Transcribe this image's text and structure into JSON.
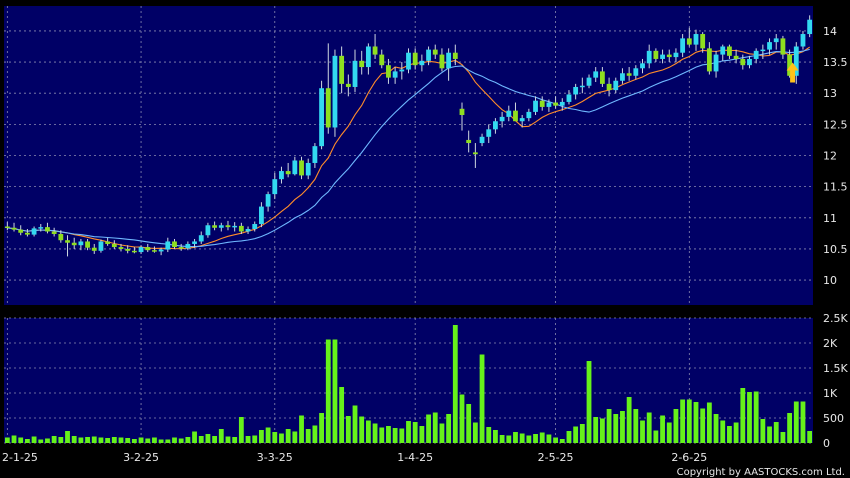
{
  "chart_data": {
    "type": "candlestick",
    "price_panel": {
      "ylim": [
        9.6,
        14.4
      ],
      "y_ticks": [
        10,
        10.5,
        11,
        11.5,
        12,
        12.5,
        13,
        13.5,
        14
      ],
      "grid": true,
      "moving_averages": [
        {
          "color": "#ff8c2a"
        },
        {
          "color": "#6fb8ff"
        }
      ]
    },
    "volume_panel": {
      "ylim": [
        0,
        2500
      ],
      "y_ticks": [
        0,
        500,
        1000,
        1500,
        2000,
        2500
      ],
      "y_tick_labels": [
        "0",
        "500",
        "1K",
        "1.5K",
        "2K",
        "2.5K"
      ],
      "grid": true
    },
    "x_tick_labels": [
      "2-1-25",
      "3-2-25",
      "3-3-25",
      "1-4-25",
      "2-5-25",
      "2-6-25"
    ],
    "x_tick_index": [
      0,
      20,
      40,
      61,
      82,
      102
    ],
    "colors": {
      "background": "#000066",
      "grid": "#8a8ab0",
      "up_candle": "#33d9f0",
      "down_candle": "#8fdf1f",
      "volume_bar": "#66f21a",
      "marker": "#ffc21a"
    },
    "ohlcv": [
      [
        10.86,
        10.93,
        10.8,
        10.84,
        110
      ],
      [
        10.84,
        10.92,
        10.78,
        10.81,
        150
      ],
      [
        10.81,
        10.88,
        10.72,
        10.76,
        110
      ],
      [
        10.76,
        10.82,
        10.7,
        10.73,
        80
      ],
      [
        10.73,
        10.86,
        10.7,
        10.83,
        130
      ],
      [
        10.83,
        10.9,
        10.78,
        10.85,
        70
      ],
      [
        10.85,
        10.92,
        10.75,
        10.78,
        90
      ],
      [
        10.78,
        10.84,
        10.7,
        10.74,
        140
      ],
      [
        10.74,
        10.8,
        10.6,
        10.64,
        120
      ],
      [
        10.64,
        10.72,
        10.38,
        10.6,
        240
      ],
      [
        10.6,
        10.68,
        10.5,
        10.56,
        140
      ],
      [
        10.56,
        10.66,
        10.48,
        10.62,
        110
      ],
      [
        10.62,
        10.66,
        10.48,
        10.52,
        120
      ],
      [
        10.52,
        10.58,
        10.42,
        10.47,
        130
      ],
      [
        10.47,
        10.65,
        10.44,
        10.62,
        110
      ],
      [
        10.62,
        10.68,
        10.55,
        10.58,
        100
      ],
      [
        10.58,
        10.64,
        10.5,
        10.53,
        120
      ],
      [
        10.53,
        10.58,
        10.46,
        10.5,
        110
      ],
      [
        10.5,
        10.56,
        10.43,
        10.47,
        100
      ],
      [
        10.47,
        10.53,
        10.43,
        10.45,
        80
      ],
      [
        10.45,
        10.56,
        10.42,
        10.53,
        110
      ],
      [
        10.53,
        10.58,
        10.45,
        10.48,
        90
      ],
      [
        10.48,
        10.54,
        10.44,
        10.46,
        110
      ],
      [
        10.46,
        10.52,
        10.4,
        10.49,
        70
      ],
      [
        10.49,
        10.68,
        10.45,
        10.62,
        70
      ],
      [
        10.62,
        10.66,
        10.5,
        10.53,
        110
      ],
      [
        10.53,
        10.58,
        10.47,
        10.51,
        90
      ],
      [
        10.51,
        10.62,
        10.48,
        10.58,
        120
      ],
      [
        10.58,
        10.66,
        10.52,
        10.62,
        230
      ],
      [
        10.62,
        10.78,
        10.58,
        10.72,
        140
      ],
      [
        10.72,
        10.92,
        10.68,
        10.88,
        180
      ],
      [
        10.88,
        10.94,
        10.8,
        10.84,
        140
      ],
      [
        10.84,
        10.92,
        10.78,
        10.88,
        280
      ],
      [
        10.88,
        10.95,
        10.8,
        10.85,
        130
      ],
      [
        10.85,
        10.93,
        10.78,
        10.87,
        120
      ],
      [
        10.87,
        10.92,
        10.74,
        10.78,
        520
      ],
      [
        10.78,
        10.86,
        10.74,
        10.82,
        140
      ],
      [
        10.82,
        10.94,
        10.78,
        10.9,
        150
      ],
      [
        10.9,
        11.25,
        10.85,
        11.18,
        260
      ],
      [
        11.18,
        11.42,
        11.1,
        11.38,
        310
      ],
      [
        11.38,
        11.72,
        11.3,
        11.62,
        220
      ],
      [
        11.62,
        11.82,
        11.55,
        11.75,
        190
      ],
      [
        11.75,
        11.88,
        11.65,
        11.7,
        280
      ],
      [
        11.7,
        11.98,
        11.68,
        11.92,
        230
      ],
      [
        11.92,
        11.98,
        11.62,
        11.68,
        550
      ],
      [
        11.68,
        11.95,
        11.62,
        11.88,
        280
      ],
      [
        11.88,
        12.2,
        11.8,
        12.15,
        350
      ],
      [
        12.15,
        13.2,
        12.1,
        13.08,
        600
      ],
      [
        13.08,
        13.8,
        12.35,
        12.45,
        2070
      ],
      [
        12.45,
        13.7,
        12.3,
        13.6,
        2070
      ],
      [
        13.6,
        13.75,
        13.0,
        13.15,
        1120
      ],
      [
        13.15,
        13.3,
        12.95,
        13.1,
        540
      ],
      [
        13.1,
        13.7,
        13.02,
        13.52,
        750
      ],
      [
        13.52,
        13.68,
        13.3,
        13.42,
        530
      ],
      [
        13.42,
        13.8,
        13.3,
        13.75,
        450
      ],
      [
        13.75,
        13.95,
        13.55,
        13.62,
        390
      ],
      [
        13.62,
        13.7,
        13.4,
        13.45,
        310
      ],
      [
        13.45,
        13.55,
        13.15,
        13.25,
        340
      ],
      [
        13.25,
        13.42,
        13.15,
        13.35,
        300
      ],
      [
        13.35,
        13.5,
        13.22,
        13.38,
        290
      ],
      [
        13.38,
        13.72,
        13.32,
        13.65,
        440
      ],
      [
        13.65,
        13.72,
        13.38,
        13.45,
        420
      ],
      [
        13.45,
        13.62,
        13.35,
        13.52,
        340
      ],
      [
        13.52,
        13.75,
        13.45,
        13.7,
        570
      ],
      [
        13.7,
        13.78,
        13.55,
        13.62,
        610
      ],
      [
        13.62,
        13.72,
        13.35,
        13.4,
        390
      ],
      [
        13.4,
        13.72,
        13.2,
        13.65,
        580
      ],
      [
        13.65,
        13.78,
        13.45,
        13.55,
        2360
      ],
      [
        12.75,
        12.85,
        12.4,
        12.65,
        970
      ],
      [
        12.25,
        12.4,
        12.05,
        12.2,
        780
      ],
      [
        12.05,
        12.2,
        11.8,
        12.02,
        410
      ],
      [
        12.2,
        12.35,
        12.15,
        12.3,
        1770
      ],
      [
        12.3,
        12.5,
        12.2,
        12.42,
        320
      ],
      [
        12.42,
        12.6,
        12.35,
        12.55,
        260
      ],
      [
        12.55,
        12.7,
        12.45,
        12.62,
        160
      ],
      [
        12.62,
        12.8,
        12.55,
        12.72,
        150
      ],
      [
        12.72,
        12.85,
        12.6,
        12.55,
        220
      ],
      [
        12.55,
        12.65,
        12.45,
        12.6,
        190
      ],
      [
        12.6,
        12.75,
        12.55,
        12.7,
        150
      ],
      [
        12.7,
        12.95,
        12.65,
        12.88,
        180
      ],
      [
        12.88,
        12.95,
        12.72,
        12.78,
        210
      ],
      [
        12.78,
        12.9,
        12.7,
        12.85,
        170
      ],
      [
        12.85,
        12.95,
        12.75,
        12.8,
        110
      ],
      [
        12.8,
        12.92,
        12.72,
        12.86,
        80
      ],
      [
        12.86,
        13.05,
        12.82,
        12.98,
        240
      ],
      [
        12.98,
        13.15,
        12.9,
        13.1,
        330
      ],
      [
        13.1,
        13.25,
        13.0,
        13.12,
        380
      ],
      [
        13.12,
        13.3,
        13.08,
        13.25,
        1640
      ],
      [
        13.25,
        13.42,
        13.18,
        13.35,
        520
      ],
      [
        13.35,
        13.42,
        13.1,
        13.15,
        490
      ],
      [
        13.15,
        13.25,
        12.95,
        13.05,
        680
      ],
      [
        13.05,
        13.25,
        13.0,
        13.2,
        580
      ],
      [
        13.2,
        13.4,
        13.15,
        13.32,
        640
      ],
      [
        13.32,
        13.42,
        13.2,
        13.28,
        920
      ],
      [
        13.28,
        13.45,
        13.22,
        13.4,
        680
      ],
      [
        13.4,
        13.55,
        13.32,
        13.48,
        450
      ],
      [
        13.48,
        13.78,
        13.4,
        13.68,
        610
      ],
      [
        13.68,
        13.72,
        13.5,
        13.55,
        250
      ],
      [
        13.55,
        13.7,
        13.48,
        13.62,
        550
      ],
      [
        13.62,
        13.7,
        13.5,
        13.58,
        410
      ],
      [
        13.58,
        13.72,
        13.5,
        13.65,
        680
      ],
      [
        13.65,
        13.95,
        13.58,
        13.88,
        870
      ],
      [
        13.88,
        14.05,
        13.75,
        13.78,
        870
      ],
      [
        13.78,
        14.02,
        13.68,
        13.95,
        820
      ],
      [
        13.95,
        13.98,
        13.65,
        13.72,
        690
      ],
      [
        13.72,
        13.82,
        13.3,
        13.35,
        810
      ],
      [
        13.35,
        13.68,
        13.25,
        13.62,
        580
      ],
      [
        13.62,
        13.78,
        13.52,
        13.75,
        450
      ],
      [
        13.75,
        13.78,
        13.55,
        13.6,
        340
      ],
      [
        13.6,
        13.7,
        13.48,
        13.55,
        410
      ],
      [
        13.55,
        13.62,
        13.38,
        13.45,
        1100
      ],
      [
        13.45,
        13.6,
        13.4,
        13.55,
        1020
      ],
      [
        13.55,
        13.72,
        13.48,
        13.68,
        1030
      ],
      [
        13.68,
        13.78,
        13.55,
        13.7,
        480
      ],
      [
        13.7,
        13.88,
        13.62,
        13.82,
        330
      ],
      [
        13.82,
        13.95,
        13.7,
        13.88,
        420
      ],
      [
        13.88,
        13.92,
        13.55,
        13.62,
        220
      ],
      [
        13.62,
        13.7,
        13.25,
        13.28,
        600
      ],
      [
        13.28,
        13.82,
        13.15,
        13.75,
        830
      ],
      [
        13.75,
        14.0,
        13.7,
        13.95,
        830
      ],
      [
        13.95,
        14.25,
        13.9,
        14.18,
        240
      ]
    ]
  },
  "copyright": "Copyright by AASTOCKS.com Ltd."
}
